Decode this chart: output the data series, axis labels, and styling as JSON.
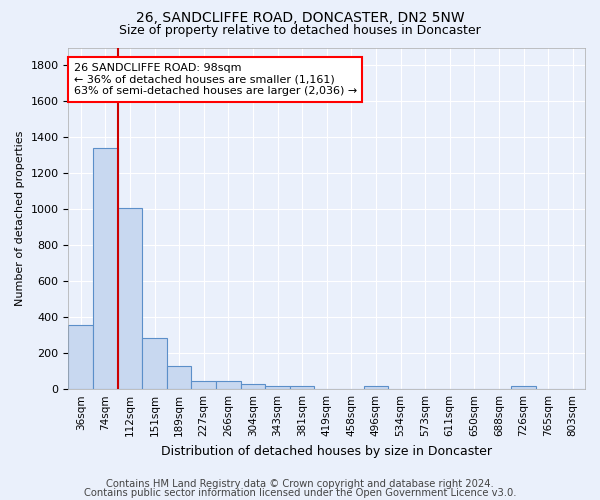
{
  "title1": "26, SANDCLIFFE ROAD, DONCASTER, DN2 5NW",
  "title2": "Size of property relative to detached houses in Doncaster",
  "xlabel": "Distribution of detached houses by size in Doncaster",
  "ylabel": "Number of detached properties",
  "categories": [
    "36sqm",
    "74sqm",
    "112sqm",
    "151sqm",
    "189sqm",
    "227sqm",
    "266sqm",
    "304sqm",
    "343sqm",
    "381sqm",
    "419sqm",
    "458sqm",
    "496sqm",
    "534sqm",
    "573sqm",
    "611sqm",
    "650sqm",
    "688sqm",
    "726sqm",
    "765sqm",
    "803sqm"
  ],
  "values": [
    355,
    1340,
    1010,
    285,
    130,
    43,
    43,
    28,
    18,
    18,
    0,
    0,
    18,
    0,
    0,
    0,
    0,
    0,
    18,
    0,
    0
  ],
  "bar_color": "#c8d8f0",
  "bar_edge_color": "#5b8fc9",
  "bar_width": 1.0,
  "red_line_index": 1.5,
  "annotation_line1": "26 SANDCLIFFE ROAD: 98sqm",
  "annotation_line2": "← 36% of detached houses are smaller (1,161)",
  "annotation_line3": "63% of semi-detached houses are larger (2,036) →",
  "annotation_box_color": "white",
  "annotation_box_edge_color": "red",
  "red_line_color": "#cc0000",
  "ylim": [
    0,
    1900
  ],
  "yticks": [
    0,
    200,
    400,
    600,
    800,
    1000,
    1200,
    1400,
    1600,
    1800
  ],
  "background_color": "#eaf0fb",
  "grid_color": "white",
  "title1_fontsize": 10,
  "title2_fontsize": 9,
  "footer_line1": "Contains HM Land Registry data © Crown copyright and database right 2024.",
  "footer_line2": "Contains public sector information licensed under the Open Government Licence v3.0.",
  "footer_fontsize": 7.2,
  "ylabel_fontsize": 8,
  "xlabel_fontsize": 9,
  "tick_fontsize": 8,
  "xtick_fontsize": 7.5
}
